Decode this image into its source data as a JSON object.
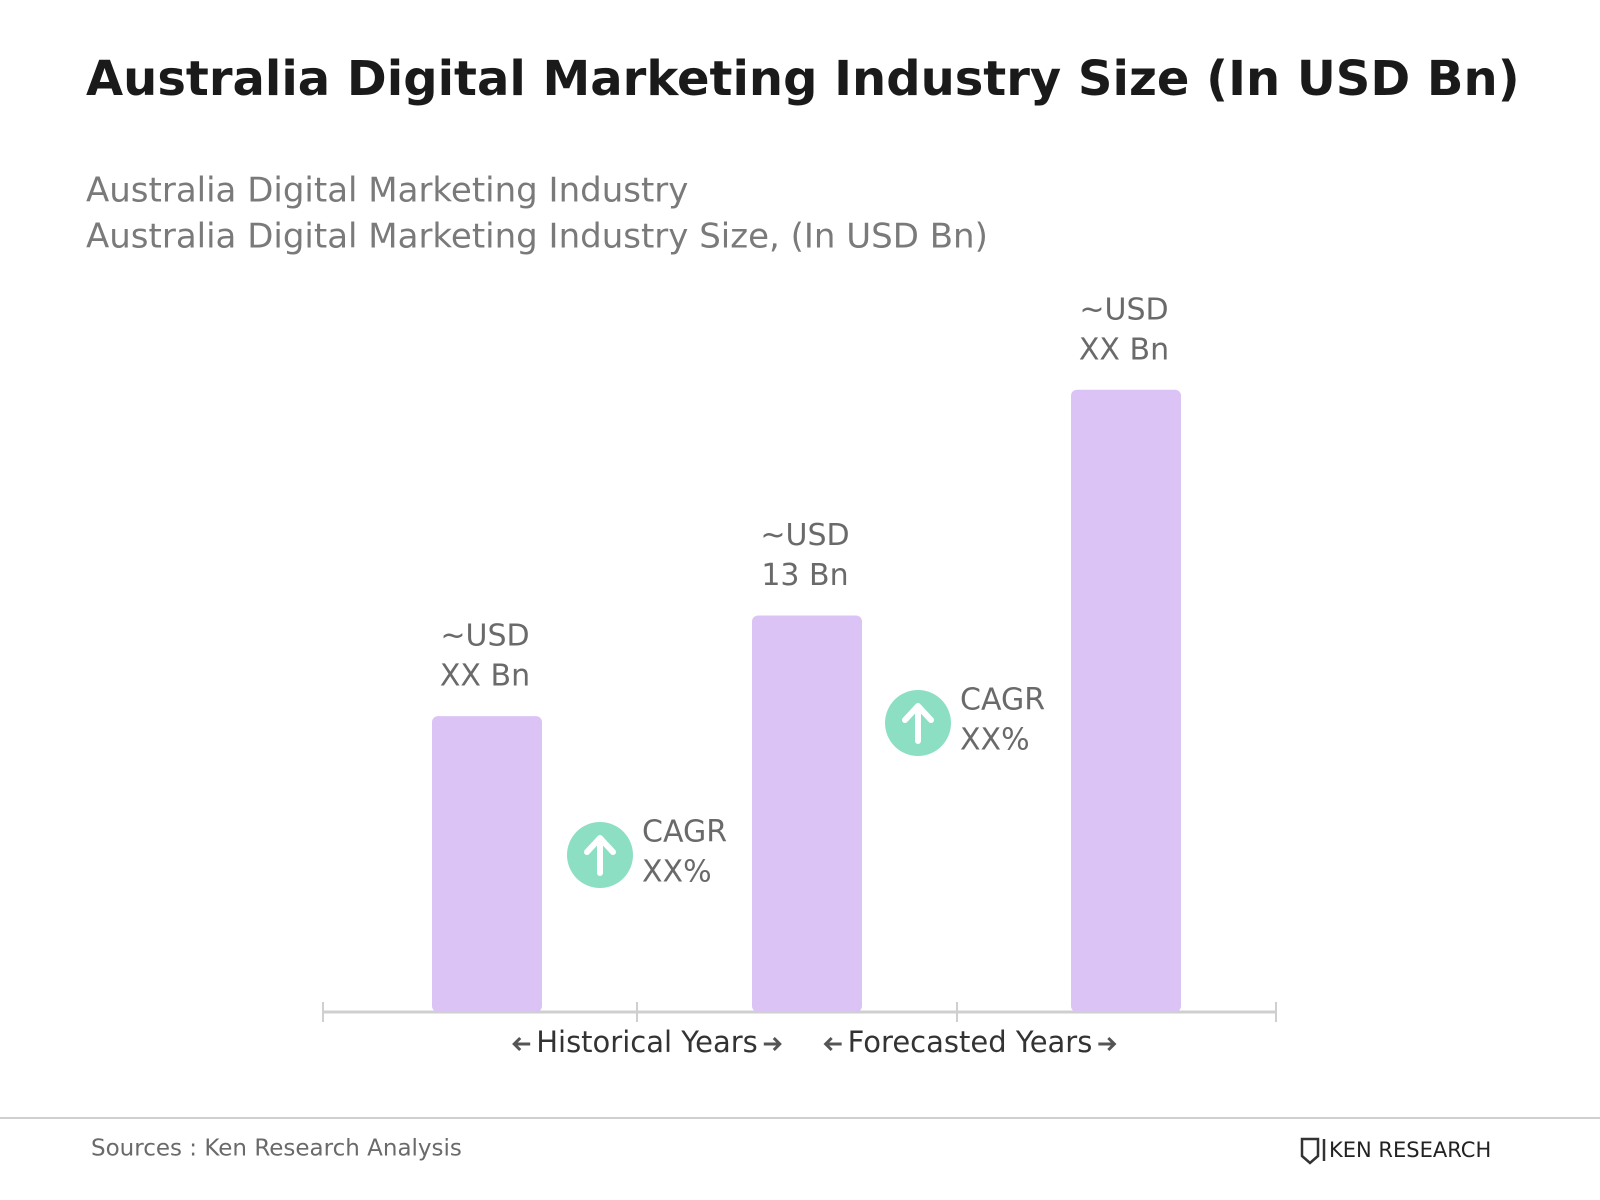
{
  "chart_data": {
    "type": "bar",
    "title": "Australia Digital Marketing Industry Size (In USD Bn)",
    "subtitle": [
      "Australia Digital Marketing Industry",
      "Australia Digital Marketing Industry Size, (In USD Bn)"
    ],
    "categories": [
      null,
      null,
      null
    ],
    "values": [
      9.7,
      13,
      20.4
    ],
    "value_labels": [
      [
        "~USD",
        "XX Bn"
      ],
      [
        "~USD",
        "13 Bn"
      ],
      [
        "~USD",
        "XX Bn"
      ]
    ],
    "color": "#dcc3f5",
    "annotations": [
      [
        "CAGR",
        "XX%"
      ],
      [
        "CAGR",
        "XX%"
      ]
    ],
    "annotation_color": "#8ddfc4",
    "periods": [
      "Historical Years",
      "Forecasted Years"
    ],
    "source": "Sources : Ken Research Analysis",
    "logo": "KEN RESEARCH"
  }
}
